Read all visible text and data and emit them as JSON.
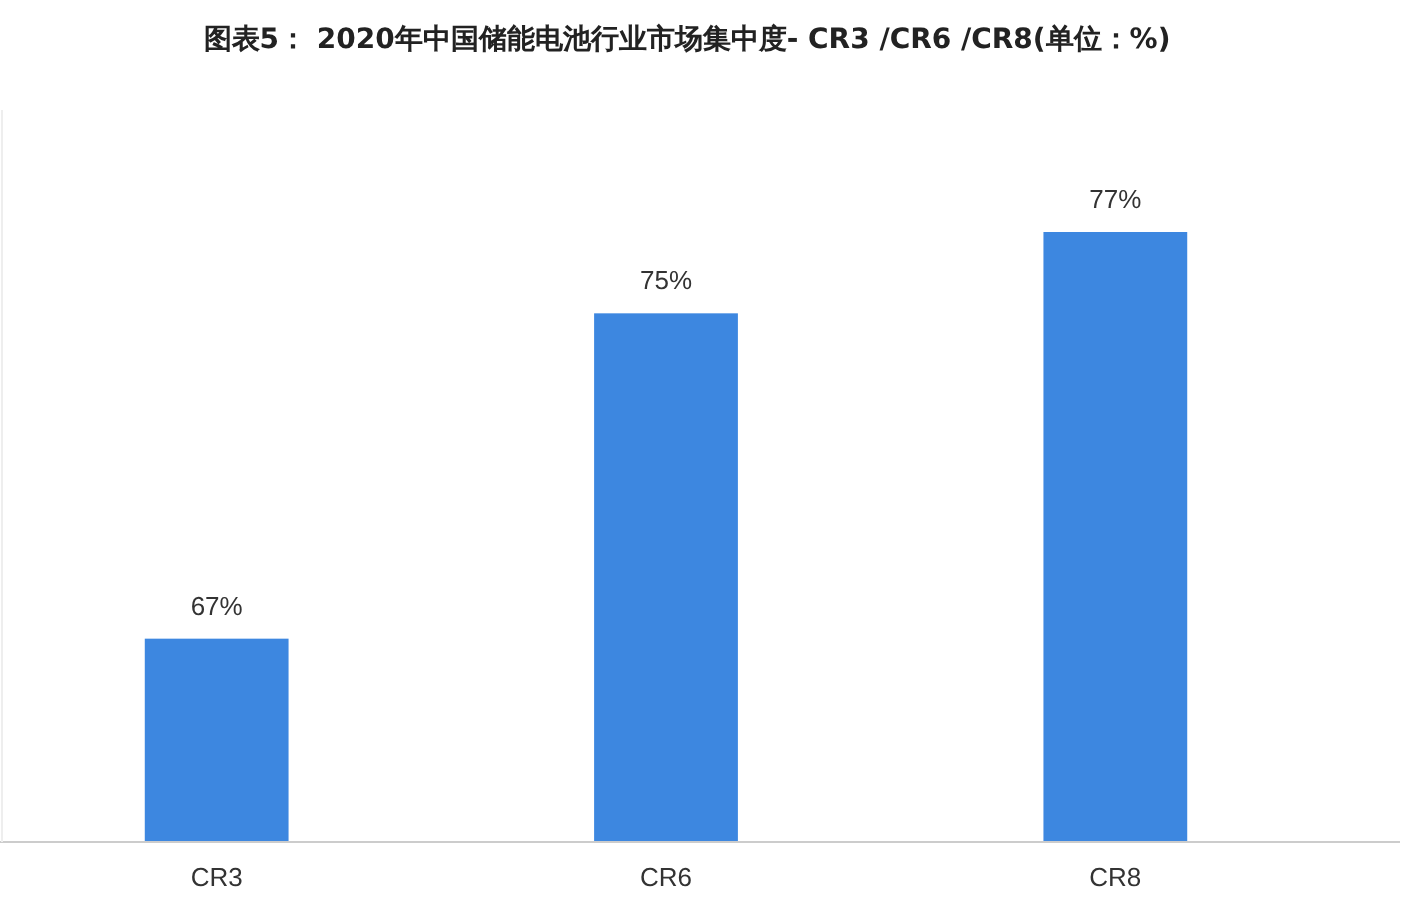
{
  "chart_data": {
    "type": "bar",
    "title": "图表5： 2020年中国储能电池行业市场集中度- CR3 /CR6 /CR8(单位：%)",
    "categories": [
      "CR3",
      "CR6",
      "CR8"
    ],
    "values": [
      67,
      75,
      77
    ],
    "value_labels": [
      "67%",
      "75%",
      "77%"
    ],
    "color": "#3d87e0",
    "ylim": [
      62,
      80
    ],
    "tick_labels": "x"
  }
}
